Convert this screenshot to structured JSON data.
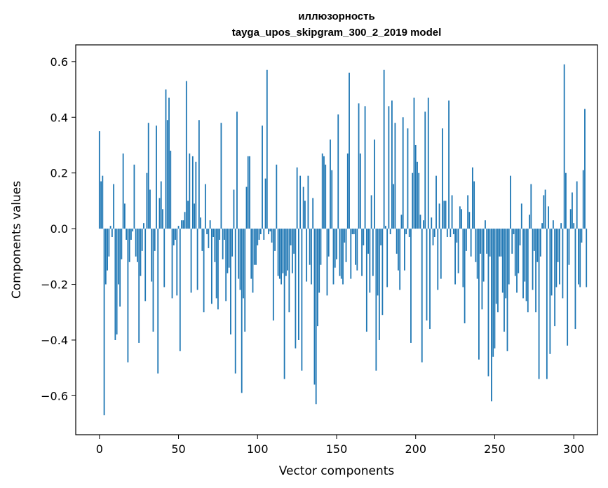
{
  "chart_data": {
    "type": "bar",
    "title_line1": "иллюзорность",
    "title_line2": "tayga_upos_skipgram_300_2_2019 model",
    "xlabel": "Vector components",
    "ylabel": "Components values",
    "xlim": [
      -15,
      315
    ],
    "ylim": [
      -0.74,
      0.66
    ],
    "xticks": [
      0,
      50,
      100,
      150,
      200,
      250,
      300
    ],
    "xtick_labels": [
      "0",
      "50",
      "100",
      "150",
      "200",
      "250",
      "300"
    ],
    "yticks": [
      -0.6,
      -0.4,
      -0.2,
      0.0,
      0.2,
      0.4,
      0.6
    ],
    "ytick_labels": [
      "−0.6",
      "−0.4",
      "−0.2",
      "0.0",
      "0.2",
      "0.4",
      "0.6"
    ],
    "bar_color": "#1f77b4",
    "values": [
      0.35,
      0.17,
      0.19,
      -0.67,
      -0.2,
      -0.15,
      -0.1,
      0.01,
      -0.03,
      0.16,
      -0.4,
      -0.38,
      -0.2,
      -0.28,
      -0.11,
      0.27,
      0.09,
      -0.04,
      -0.48,
      -0.12,
      -0.04,
      -0.01,
      0.23,
      -0.1,
      -0.12,
      -0.41,
      -0.17,
      -0.08,
      0.02,
      -0.26,
      0.2,
      0.38,
      0.14,
      -0.19,
      -0.37,
      -0.08,
      0.37,
      -0.52,
      0.11,
      0.17,
      0.07,
      -0.21,
      0.5,
      0.39,
      0.47,
      0.28,
      -0.25,
      -0.06,
      -0.04,
      -0.24,
      0.01,
      -0.44,
      0.03,
      0.03,
      0.06,
      0.53,
      0.1,
      0.27,
      -0.23,
      0.26,
      0.09,
      0.24,
      -0.22,
      0.39,
      0.04,
      -0.08,
      -0.3,
      0.16,
      -0.02,
      -0.07,
      0.03,
      -0.27,
      -0.03,
      -0.12,
      -0.25,
      -0.29,
      -0.04,
      0.38,
      -0.11,
      -0.04,
      -0.26,
      -0.16,
      -0.14,
      -0.38,
      -0.1,
      0.14,
      -0.52,
      0.42,
      -0.18,
      -0.22,
      -0.59,
      -0.25,
      -0.37,
      0.15,
      0.26,
      0.26,
      -0.18,
      -0.23,
      -0.13,
      -0.13,
      -0.06,
      -0.04,
      -0.02,
      0.37,
      -0.04,
      0.18,
      0.57,
      -0.02,
      -0.01,
      -0.05,
      -0.33,
      -0.08,
      0.23,
      -0.17,
      -0.18,
      -0.2,
      -0.16,
      -0.54,
      -0.17,
      -0.15,
      -0.3,
      -0.06,
      -0.16,
      -0.09,
      -0.43,
      0.22,
      -0.4,
      0.19,
      -0.51,
      0.15,
      0.1,
      -0.19,
      0.19,
      -0.13,
      -0.2,
      0.11,
      -0.56,
      -0.63,
      -0.35,
      -0.23,
      -0.13,
      0.27,
      0.26,
      0.23,
      -0.24,
      -0.1,
      0.32,
      0.21,
      -0.2,
      -0.14,
      -0.11,
      0.41,
      -0.17,
      -0.18,
      -0.2,
      -0.05,
      -0.12,
      0.27,
      0.56,
      -0.18,
      -0.02,
      -0.02,
      -0.13,
      -0.15,
      0.45,
      0.27,
      -0.17,
      -0.06,
      0.44,
      -0.37,
      -0.09,
      -0.23,
      0.12,
      -0.17,
      0.32,
      -0.51,
      -0.24,
      -0.4,
      -0.06,
      -0.31,
      0.57,
      0.01,
      -0.21,
      0.44,
      -0.02,
      0.46,
      0.16,
      0.38,
      -0.09,
      -0.15,
      -0.22,
      0.05,
      0.4,
      -0.15,
      -0.02,
      0.36,
      -0.03,
      -0.41,
      0.2,
      0.47,
      0.3,
      0.24,
      0.2,
      0.05,
      -0.48,
      0.03,
      0.42,
      -0.33,
      0.47,
      -0.36,
      0.04,
      -0.06,
      -0.03,
      0.19,
      -0.22,
      0.09,
      -0.18,
      0.36,
      0.1,
      0.1,
      -0.03,
      0.46,
      -0.03,
      0.12,
      -0.02,
      -0.2,
      -0.05,
      -0.16,
      0.08,
      0.07,
      -0.21,
      -0.34,
      -0.08,
      0.12,
      0.06,
      -0.1,
      0.22,
      0.17,
      -0.12,
      -0.18,
      -0.47,
      -0.09,
      -0.29,
      -0.19,
      0.03,
      -0.09,
      -0.53,
      -0.1,
      -0.62,
      -0.46,
      -0.43,
      -0.27,
      -0.3,
      -0.1,
      -0.1,
      -0.23,
      -0.37,
      -0.25,
      -0.44,
      -0.2,
      0.19,
      -0.09,
      -0.02,
      -0.17,
      -0.23,
      -0.16,
      -0.06,
      0.09,
      -0.25,
      -0.19,
      -0.26,
      -0.3,
      0.05,
      0.16,
      -0.22,
      -0.08,
      -0.3,
      -0.12,
      -0.54,
      -0.1,
      0.02,
      0.12,
      0.14,
      -0.54,
      0.08,
      -0.45,
      -0.24,
      0.03,
      -0.35,
      -0.21,
      -0.12,
      -0.2,
      0.02,
      -0.25,
      0.59,
      0.2,
      -0.42,
      -0.13,
      0.07,
      0.13,
      0.02,
      -0.36,
      0.17,
      -0.2,
      -0.21,
      -0.05,
      0.21,
      0.43,
      -0.21
    ]
  }
}
